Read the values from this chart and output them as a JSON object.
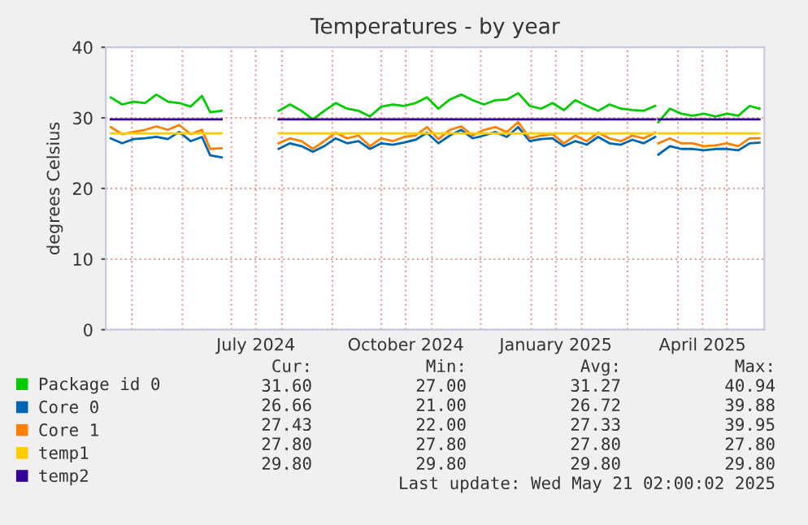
{
  "chart_data": {
    "type": "line",
    "title": "Temperatures - by year",
    "ylabel": "degrees Celsius",
    "x": [
      "2024-04-18",
      "2024-04-25",
      "2024-05-02",
      "2024-05-09",
      "2024-05-16",
      "2024-05-23",
      "2024-05-30",
      "2024-06-06",
      "2024-06-13",
      "2024-06-18",
      "2024-06-25",
      "2024-07-12",
      "2024-07-30",
      "2024-08-06",
      "2024-08-13",
      "2024-08-20",
      "2024-08-27",
      "2024-09-03",
      "2024-09-10",
      "2024-09-17",
      "2024-09-24",
      "2024-10-01",
      "2024-10-08",
      "2024-10-15",
      "2024-10-22",
      "2024-10-29",
      "2024-11-05",
      "2024-11-12",
      "2024-11-19",
      "2024-11-26",
      "2024-12-03",
      "2024-12-10",
      "2024-12-17",
      "2024-12-24",
      "2024-12-31",
      "2025-01-07",
      "2025-01-14",
      "2025-01-21",
      "2025-01-28",
      "2025-02-04",
      "2025-02-11",
      "2025-02-18",
      "2025-02-25",
      "2025-03-04",
      "2025-03-11",
      "2025-03-18",
      "2025-03-19",
      "2025-03-20",
      "2025-03-27",
      "2025-04-03",
      "2025-04-10",
      "2025-04-17",
      "2025-04-24",
      "2025-05-01",
      "2025-05-08",
      "2025-05-15",
      "2025-05-21"
    ],
    "series": [
      {
        "name": "Package id 0",
        "color": "#00cc00",
        "values": [
          32.9,
          31.9,
          32.3,
          32.1,
          33.3,
          32.3,
          32.1,
          31.6,
          33.1,
          30.8,
          31.0,
          null,
          31.0,
          31.9,
          31.0,
          29.8,
          31.0,
          32.1,
          31.3,
          31.0,
          30.2,
          31.6,
          31.9,
          31.7,
          32.1,
          32.9,
          31.3,
          32.6,
          33.3,
          32.5,
          31.9,
          32.5,
          32.6,
          33.5,
          31.7,
          31.3,
          32.1,
          31.1,
          32.5,
          31.7,
          31.0,
          31.9,
          31.3,
          31.1,
          31.0,
          31.7,
          null,
          29.4,
          31.3,
          30.6,
          30.3,
          30.6,
          30.2,
          30.6,
          30.3,
          31.7,
          31.3
        ]
      },
      {
        "name": "Core 0",
        "color": "#0066b3",
        "values": [
          27.1,
          26.4,
          27.0,
          27.1,
          27.3,
          27.0,
          28.0,
          26.7,
          27.3,
          24.7,
          24.4,
          null,
          25.6,
          26.4,
          26.0,
          25.2,
          26.0,
          27.1,
          26.4,
          26.7,
          25.6,
          26.4,
          26.2,
          26.5,
          26.9,
          27.9,
          26.4,
          27.5,
          28.3,
          27.1,
          27.5,
          28.0,
          27.3,
          28.7,
          26.7,
          27.0,
          27.1,
          26.0,
          26.7,
          26.2,
          27.3,
          26.4,
          26.2,
          26.9,
          26.4,
          27.3,
          null,
          24.8,
          26.0,
          25.6,
          25.6,
          25.4,
          25.6,
          25.6,
          25.4,
          26.4,
          26.5
        ]
      },
      {
        "name": "Core 1",
        "color": "#ff8000",
        "values": [
          28.7,
          27.7,
          28.0,
          28.3,
          28.8,
          28.3,
          29.0,
          27.7,
          28.3,
          25.6,
          25.7,
          null,
          26.4,
          27.1,
          26.7,
          25.6,
          26.7,
          27.9,
          27.1,
          27.5,
          26.0,
          27.1,
          26.7,
          27.3,
          27.5,
          28.7,
          27.0,
          28.3,
          28.8,
          27.5,
          28.3,
          28.7,
          28.0,
          29.4,
          27.1,
          27.5,
          27.7,
          26.4,
          27.5,
          26.7,
          27.9,
          27.1,
          26.7,
          27.5,
          27.1,
          27.9,
          null,
          26.4,
          27.1,
          26.4,
          26.4,
          26.0,
          26.1,
          26.4,
          26.0,
          27.1,
          27.1
        ]
      },
      {
        "name": "temp1",
        "color": "#ffcc00",
        "values": [
          27.8,
          27.8,
          27.8,
          27.8,
          27.8,
          27.8,
          27.8,
          27.8,
          27.8,
          27.8,
          27.8,
          null,
          27.8,
          27.8,
          27.8,
          27.8,
          27.8,
          27.8,
          27.8,
          27.8,
          27.8,
          27.8,
          27.8,
          27.8,
          27.8,
          27.8,
          27.8,
          27.8,
          27.8,
          27.8,
          27.8,
          27.8,
          27.8,
          27.8,
          27.8,
          27.8,
          27.8,
          27.8,
          27.8,
          27.8,
          27.8,
          27.8,
          27.8,
          27.8,
          27.8,
          27.8,
          null,
          27.8,
          27.8,
          27.8,
          27.8,
          27.8,
          27.8,
          27.8,
          27.8,
          27.8,
          27.8
        ]
      },
      {
        "name": "temp2",
        "color": "#330099",
        "values": [
          29.8,
          29.8,
          29.8,
          29.8,
          29.8,
          29.8,
          29.8,
          29.8,
          29.8,
          29.8,
          29.8,
          null,
          29.8,
          29.8,
          29.8,
          29.8,
          29.8,
          29.8,
          29.8,
          29.8,
          29.8,
          29.8,
          29.8,
          29.8,
          29.8,
          29.8,
          29.8,
          29.8,
          29.8,
          29.8,
          29.8,
          29.8,
          29.8,
          29.8,
          29.8,
          29.8,
          29.8,
          29.8,
          29.8,
          29.8,
          29.8,
          29.8,
          29.8,
          29.8,
          29.8,
          29.8,
          null,
          29.8,
          29.8,
          29.8,
          29.8,
          29.8,
          29.8,
          29.8,
          29.8,
          29.8,
          29.8
        ]
      }
    ],
    "xlim": [
      "2024-04-15",
      "2025-05-24"
    ],
    "xticks": [
      {
        "value": "2024-05-01",
        "label": null
      },
      {
        "value": "2024-06-01",
        "label": null
      },
      {
        "value": "2024-07-01",
        "label": null
      },
      {
        "value": "2024-07-16",
        "label": "July 2024"
      },
      {
        "value": "2024-08-01",
        "label": null
      },
      {
        "value": "2024-09-01",
        "label": null
      },
      {
        "value": "2024-10-01",
        "label": null
      },
      {
        "value": "2024-10-16",
        "label": "October 2024"
      },
      {
        "value": "2024-11-01",
        "label": null
      },
      {
        "value": "2024-12-01",
        "label": null
      },
      {
        "value": "2025-01-01",
        "label": null
      },
      {
        "value": "2025-01-16",
        "label": "January 2025"
      },
      {
        "value": "2025-02-01",
        "label": null
      },
      {
        "value": "2025-03-01",
        "label": null
      },
      {
        "value": "2025-04-01",
        "label": null
      },
      {
        "value": "2025-04-16",
        "label": "April 2025"
      },
      {
        "value": "2025-05-01",
        "label": null
      }
    ],
    "ylim": [
      0,
      40
    ],
    "yticks": [
      0,
      10,
      20,
      30,
      40
    ],
    "grid": true,
    "legend": "bottom",
    "marker": "none",
    "line_style": "solid",
    "annotations": [
      "Cur:",
      "Min:",
      "Avg:",
      "Max:",
      "31.60",
      "27.00",
      "31.27",
      "40.94",
      "26.66",
      "21.00",
      "26.72",
      "39.88",
      "27.43",
      "22.00",
      "27.33",
      "39.95",
      "27.80",
      "27.80",
      "27.80",
      "27.80",
      "29.80",
      "29.80",
      "29.80",
      "29.80",
      "Last update: Wed May 21 02:00:02 2025"
    ]
  }
}
